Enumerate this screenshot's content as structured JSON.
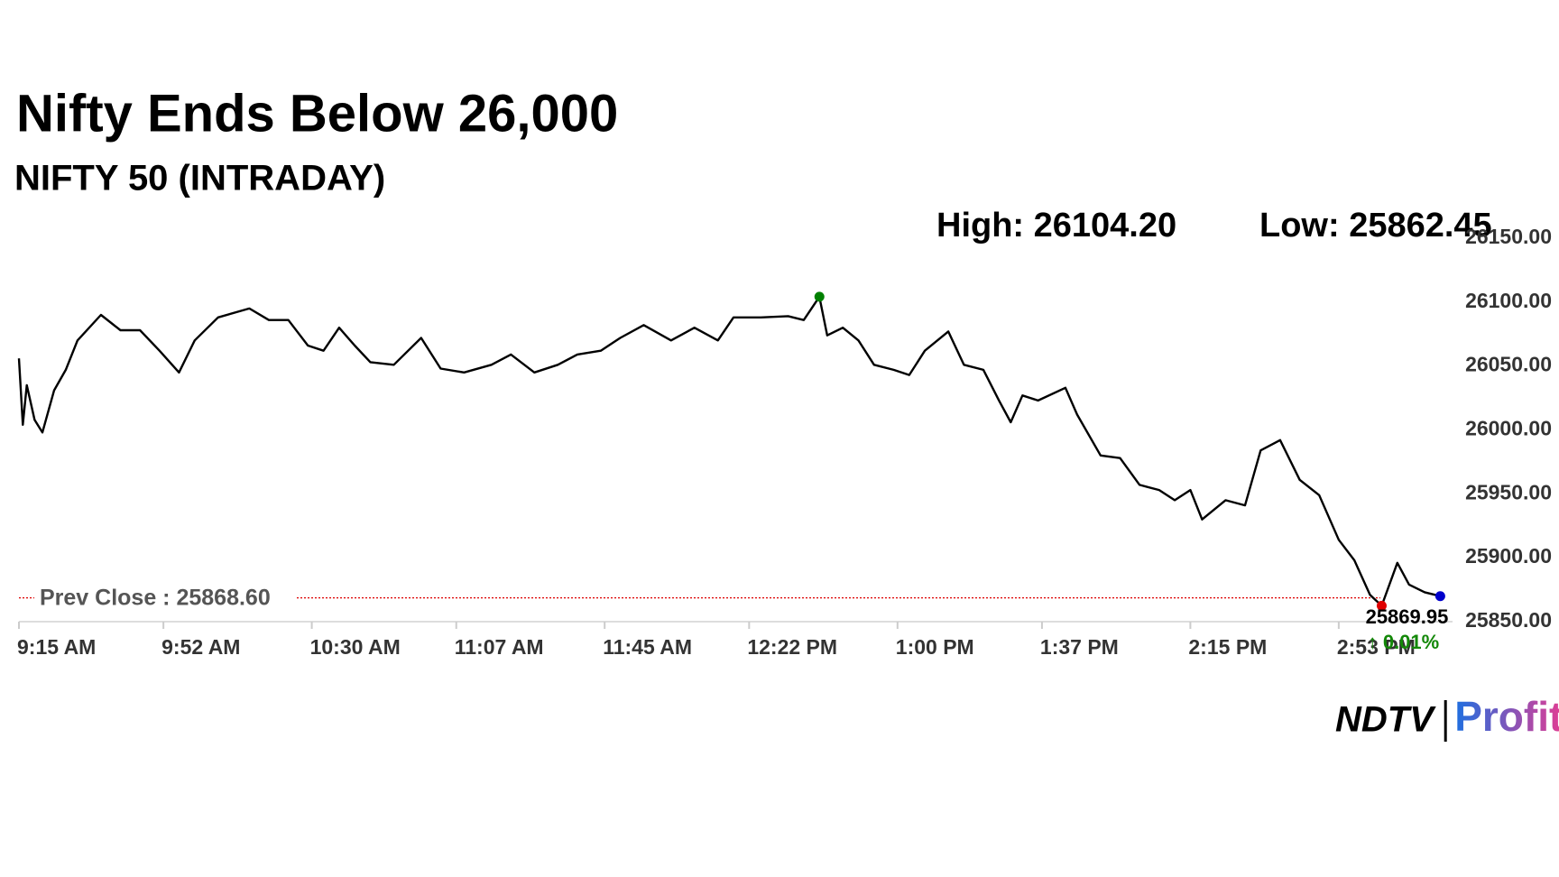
{
  "chart_data": {
    "type": "line",
    "title": "Nifty Ends Below 26,000",
    "subtitle": "NIFTY 50 (INTRADAY)",
    "high_label": "High: 26104.20",
    "low_label": "Low: 25862.45",
    "prev_close": 25868.6,
    "prev_close_label": "Prev Close : 25868.60",
    "last_label": "25869.95",
    "change_label": "↑ 0.01%",
    "brand": [
      "NDTV",
      "Profit"
    ],
    "x": [
      555,
      556,
      557,
      559,
      561,
      564,
      567,
      570,
      576,
      581,
      586,
      591,
      596,
      600,
      606,
      614,
      619,
      624,
      629,
      633,
      637,
      641,
      645,
      651,
      658,
      663,
      669,
      676,
      681,
      687,
      693,
      698,
      704,
      709,
      715,
      722,
      728,
      734,
      738,
      745,
      752,
      756,
      760,
      762,
      766,
      770,
      774,
      779,
      783,
      787,
      793,
      797,
      802,
      806,
      809,
      812,
      816,
      823,
      826,
      832,
      837,
      842,
      847,
      851,
      855,
      858,
      864,
      869,
      873,
      878,
      883,
      888,
      893,
      897,
      901,
      904,
      908,
      911,
      915,
      919
    ],
    "series": [
      {
        "color": "#000000",
        "values": [
          26056,
          26004,
          26035,
          26008,
          25998,
          26031,
          26047,
          26070,
          26090,
          26078,
          26078,
          26062,
          26045,
          26070,
          26088,
          26095,
          26086,
          26086,
          26066,
          26062,
          26080,
          26066,
          26053,
          26051,
          26072,
          26048,
          26045,
          26051,
          26059,
          26045,
          26051,
          26059,
          26062,
          26072,
          26082,
          26070,
          26080,
          26070,
          26088,
          26088,
          26089,
          26086,
          26104.2,
          26074,
          26080,
          26070,
          26051,
          26047,
          26043,
          26062,
          26077,
          26051,
          26047,
          26023,
          26006,
          26027,
          26023,
          26033,
          26012,
          25980,
          25978,
          25957,
          25953,
          25945,
          25953,
          25930,
          25945,
          25941,
          25984,
          25992,
          25961,
          25949,
          25914,
          25898,
          25871,
          25862.45,
          25896,
          25879,
          25873,
          25869.95
        ]
      }
    ],
    "xlim": [
      555,
      930
    ],
    "xticks": [
      {
        "value": 555,
        "label": "9:15 AM"
      },
      {
        "value": 592,
        "label": "9:52 AM"
      },
      {
        "value": 630,
        "label": "10:30 AM"
      },
      {
        "value": 667,
        "label": "11:07 AM"
      },
      {
        "value": 705,
        "label": "11:45 AM"
      },
      {
        "value": 742,
        "label": "12:22 PM"
      },
      {
        "value": 780,
        "label": "1:00 PM"
      },
      {
        "value": 817,
        "label": "1:37 PM"
      },
      {
        "value": 855,
        "label": "2:15 PM"
      },
      {
        "value": 893,
        "label": "2:53 PM"
      }
    ],
    "ylim": [
      25850,
      26150
    ],
    "yticks": [
      {
        "value": 25850,
        "label": "25850.00"
      },
      {
        "value": 25900,
        "label": "25900.00"
      },
      {
        "value": 25950,
        "label": "25950.00"
      },
      {
        "value": 26000,
        "label": "26000.00"
      },
      {
        "value": 26050,
        "label": "26050.00"
      },
      {
        "value": 26100,
        "label": "26100.00"
      },
      {
        "value": 26150,
        "label": "26150.00"
      }
    ],
    "marker_colors": {
      "high": "#008000",
      "low": "#e00000",
      "last": "#0000cc"
    }
  }
}
